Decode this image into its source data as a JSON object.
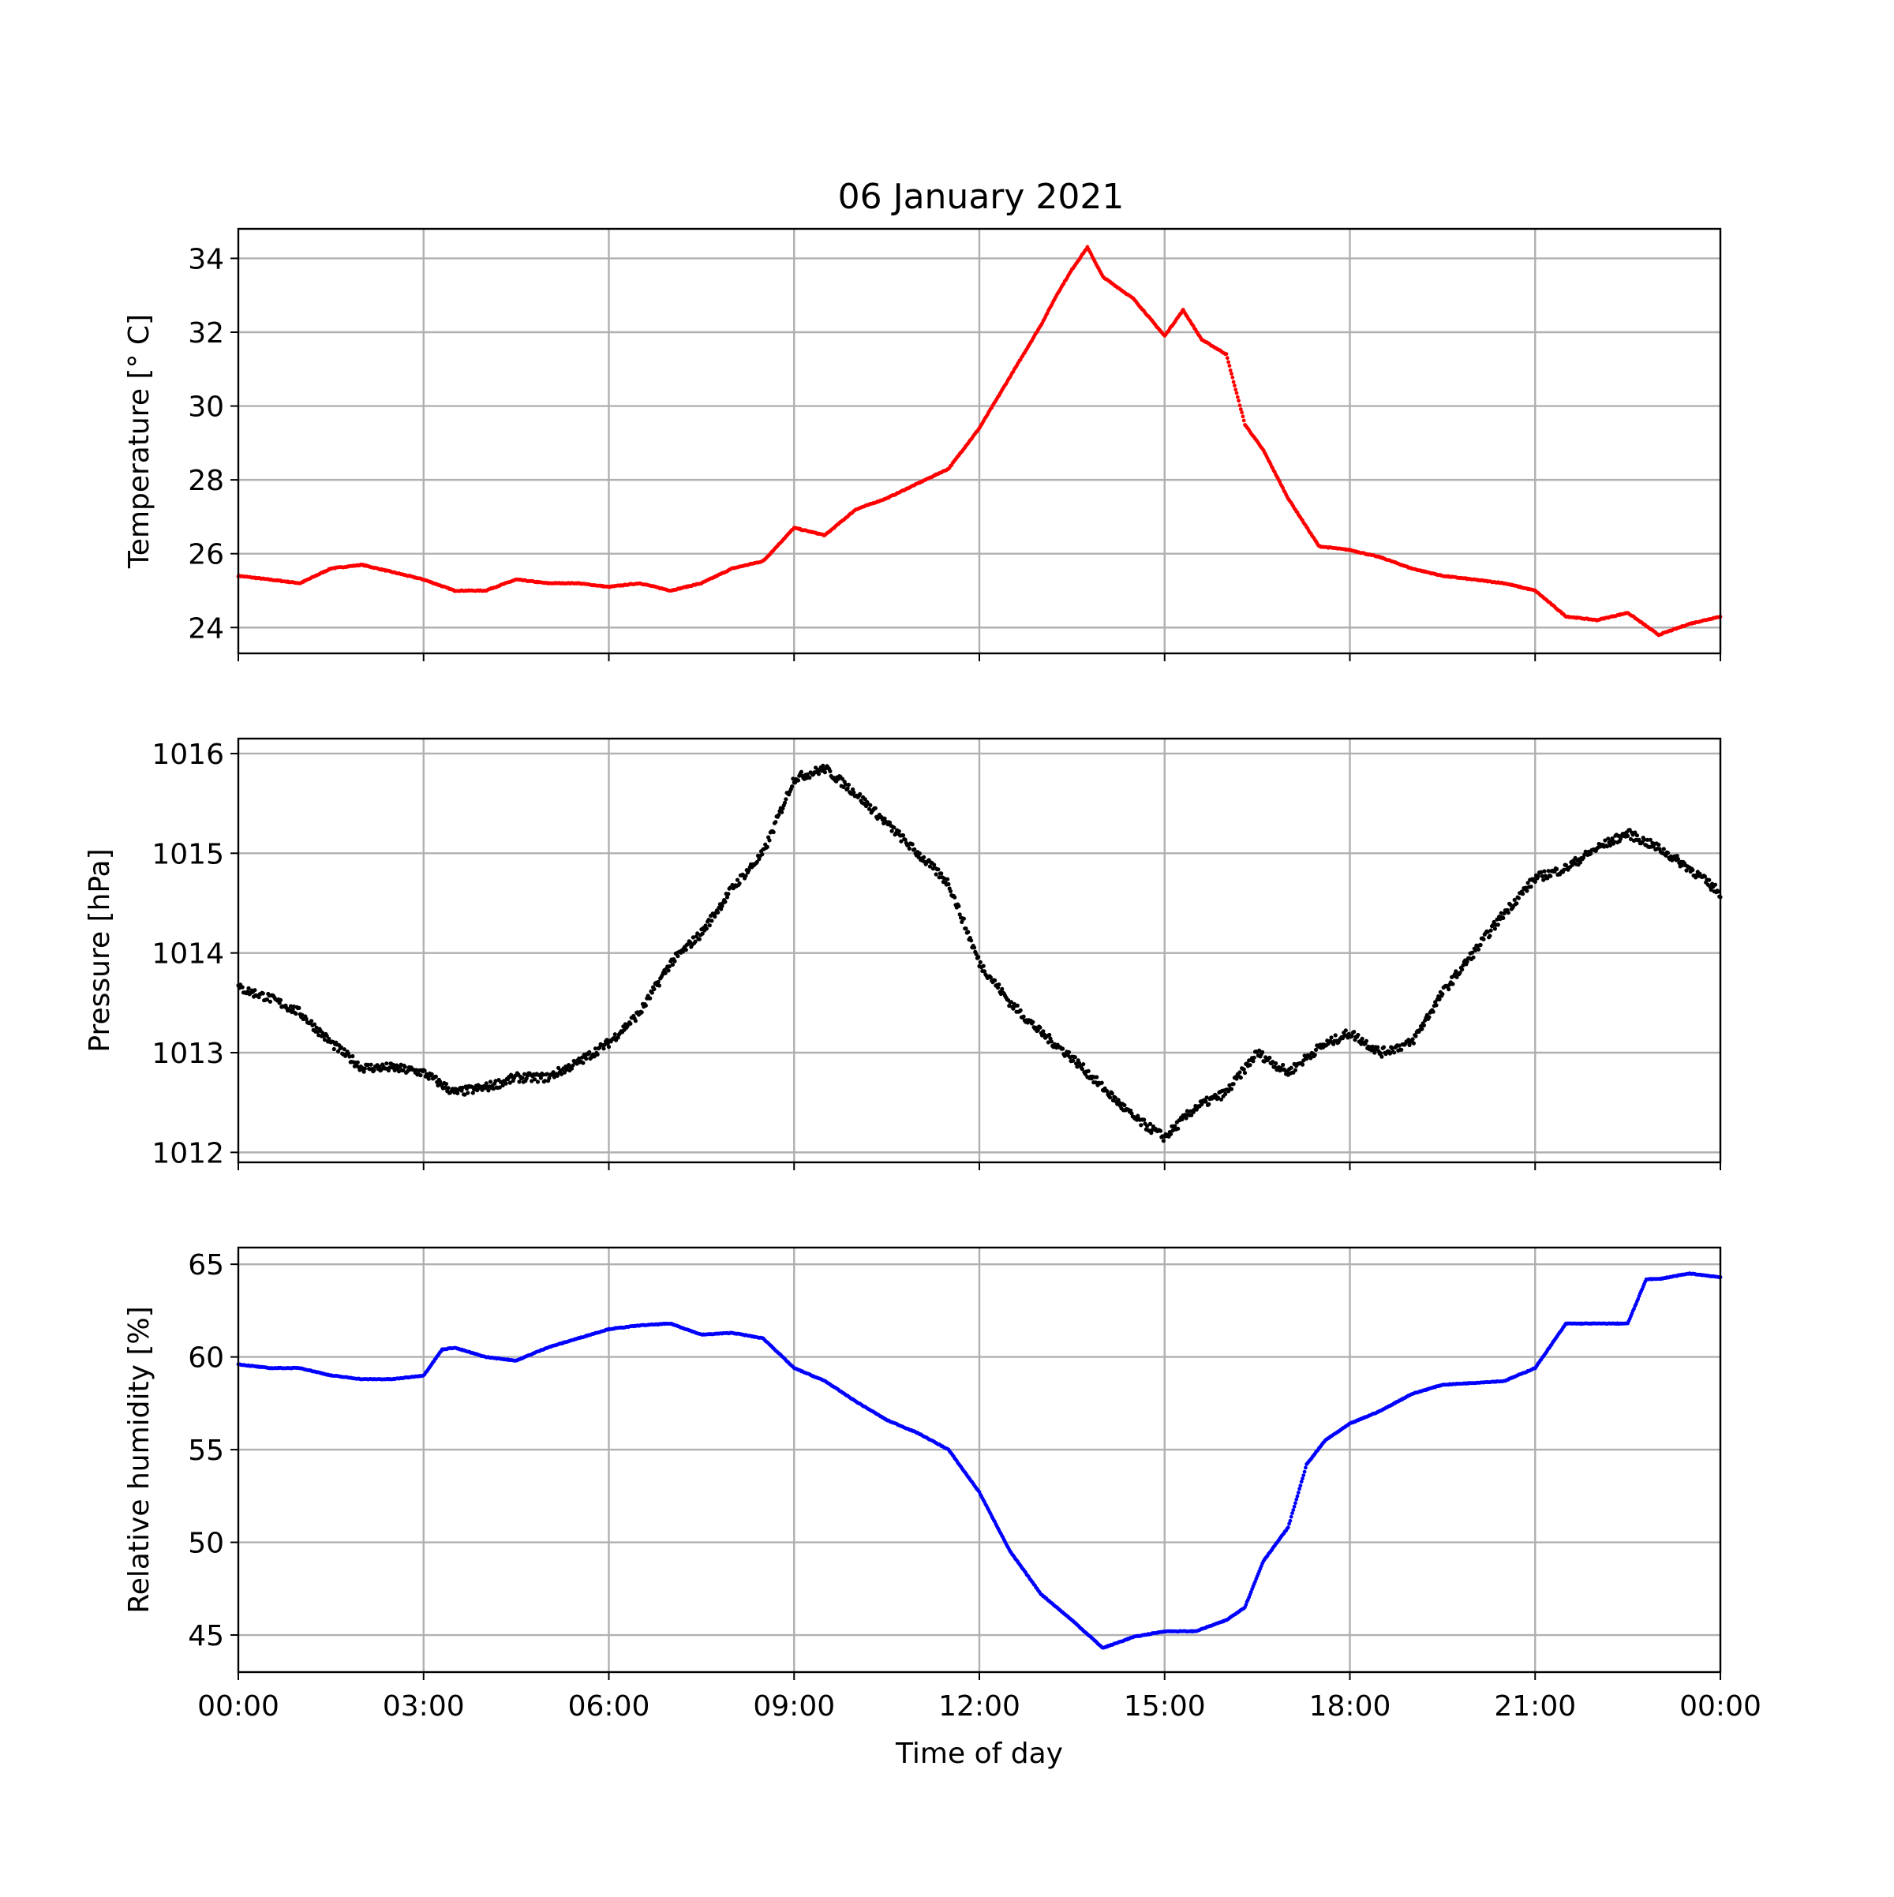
{
  "figure": {
    "title": "06 January 2021"
  },
  "chart_data": [
    {
      "type": "scatter",
      "id": "temperature",
      "ylabel": "Temperature [° C]",
      "xlabel": "",
      "color": "#ff0000",
      "grid": true,
      "xlim": [
        0,
        24
      ],
      "ylim": [
        23.3,
        34.8
      ],
      "yticks": [
        24,
        26,
        28,
        30,
        32,
        34
      ],
      "x_hours": [
        0,
        0.5,
        1,
        1.5,
        2,
        2.5,
        3,
        3.5,
        4,
        4.5,
        5,
        5.5,
        6,
        6.5,
        7,
        7.5,
        8,
        8.5,
        9,
        9.5,
        10,
        10.5,
        11,
        11.5,
        12,
        12.5,
        13,
        13.25,
        13.5,
        13.75,
        14,
        14.5,
        15,
        15.3,
        15.6,
        16,
        16.3,
        16.6,
        17,
        17.5,
        18,
        18.5,
        19,
        19.5,
        20,
        20.5,
        21,
        21.5,
        22,
        22.5,
        23,
        23.5,
        24
      ],
      "values": [
        25.4,
        25.3,
        25.2,
        25.6,
        25.7,
        25.5,
        25.3,
        25.0,
        25.0,
        25.3,
        25.2,
        25.2,
        25.1,
        25.2,
        25.0,
        25.2,
        25.6,
        25.8,
        26.7,
        26.5,
        27.2,
        27.5,
        27.9,
        28.3,
        29.4,
        30.8,
        32.2,
        33.0,
        33.7,
        34.3,
        33.5,
        32.9,
        31.9,
        32.6,
        31.8,
        31.4,
        29.5,
        28.8,
        27.5,
        26.2,
        26.1,
        25.9,
        25.6,
        25.4,
        25.3,
        25.2,
        25.0,
        24.3,
        24.2,
        24.4,
        23.8,
        24.1,
        24.3
      ]
    },
    {
      "type": "scatter",
      "id": "pressure",
      "ylabel": "Pressure [hPa]",
      "xlabel": "",
      "color": "#000000",
      "grid": true,
      "xlim": [
        0,
        24
      ],
      "ylim": [
        1011.9,
        1016.15
      ],
      "yticks": [
        1012,
        1013,
        1014,
        1015,
        1016
      ],
      "x_hours": [
        0,
        0.5,
        1,
        1.5,
        2,
        2.5,
        3,
        3.5,
        4,
        4.5,
        5,
        5.5,
        6,
        6.5,
        7,
        7.5,
        8,
        8.5,
        9,
        9.5,
        10,
        10.5,
        11,
        11.5,
        12,
        12.5,
        13,
        13.5,
        14,
        14.5,
        15,
        15.5,
        16,
        16.5,
        17,
        17.5,
        18,
        18.5,
        19,
        19.5,
        20,
        20.5,
        21,
        21.5,
        22,
        22.5,
        23,
        23.5,
        24
      ],
      "values": [
        1013.65,
        1013.55,
        1013.4,
        1013.1,
        1012.85,
        1012.85,
        1012.8,
        1012.6,
        1012.65,
        1012.75,
        1012.75,
        1012.9,
        1013.1,
        1013.4,
        1013.9,
        1014.2,
        1014.65,
        1015.0,
        1015.75,
        1015.85,
        1015.6,
        1015.3,
        1015.0,
        1014.7,
        1013.9,
        1013.5,
        1013.2,
        1012.95,
        1012.65,
        1012.35,
        1012.15,
        1012.45,
        1012.6,
        1013.0,
        1012.8,
        1013.05,
        1013.2,
        1013.0,
        1013.1,
        1013.6,
        1014.0,
        1014.4,
        1014.75,
        1014.85,
        1015.05,
        1015.2,
        1015.05,
        1014.85,
        1014.6
      ]
    },
    {
      "type": "scatter",
      "id": "humidity",
      "ylabel": "Relative humidity [%]",
      "xlabel": "Time of day",
      "color": "#0000ff",
      "grid": true,
      "xlim": [
        0,
        24
      ],
      "ylim": [
        43.0,
        65.9
      ],
      "yticks": [
        45,
        50,
        55,
        60,
        65
      ],
      "xtick_labels": [
        "00:00",
        "03:00",
        "06:00",
        "09:00",
        "12:00",
        "15:00",
        "18:00",
        "21:00",
        "00:00"
      ],
      "x_hours": [
        0,
        0.5,
        1,
        1.5,
        2,
        2.5,
        3,
        3.3,
        3.5,
        4,
        4.5,
        5,
        5.5,
        6,
        6.5,
        7,
        7.5,
        8,
        8.5,
        9,
        9.5,
        10,
        10.5,
        11,
        11.5,
        12,
        12.5,
        13,
        13.5,
        14,
        14.5,
        15,
        15.5,
        16,
        16.3,
        16.6,
        17,
        17.3,
        17.6,
        18,
        18.5,
        19,
        19.5,
        20,
        20.5,
        21,
        21.5,
        22,
        22.5,
        22.8,
        23,
        23.5,
        24
      ],
      "values": [
        59.6,
        59.4,
        59.4,
        59.0,
        58.8,
        58.8,
        59.0,
        60.4,
        60.5,
        60.0,
        59.8,
        60.5,
        61.0,
        61.5,
        61.7,
        61.8,
        61.2,
        61.3,
        61.0,
        59.4,
        58.7,
        57.6,
        56.6,
        55.9,
        55.0,
        52.7,
        49.5,
        47.2,
        45.8,
        44.3,
        44.9,
        45.2,
        45.2,
        45.8,
        46.5,
        49.0,
        50.8,
        54.2,
        55.5,
        56.4,
        57.1,
        58.0,
        58.5,
        58.6,
        58.7,
        59.4,
        61.8,
        61.8,
        61.8,
        64.2,
        64.2,
        64.5,
        64.3
      ]
    }
  ]
}
